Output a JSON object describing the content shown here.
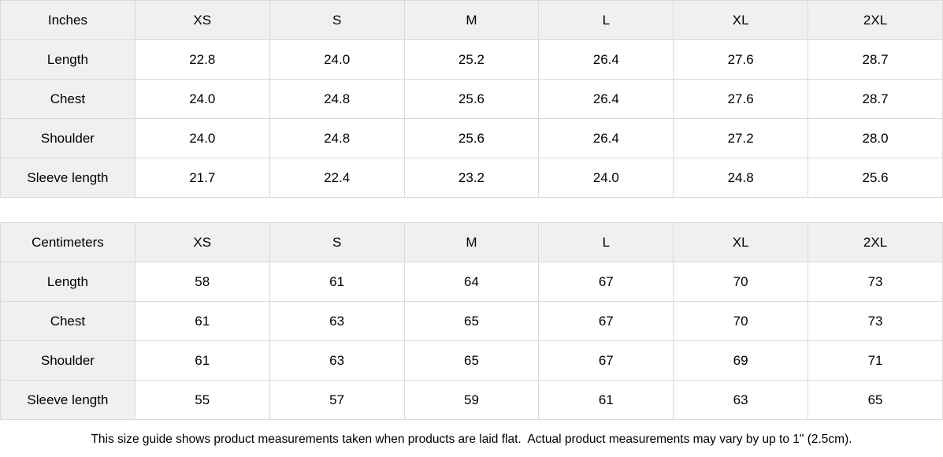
{
  "size_guide": {
    "columns": [
      "XS",
      "S",
      "M",
      "L",
      "XL",
      "2XL"
    ],
    "tables": [
      {
        "unit_label": "Inches",
        "rows": [
          {
            "label": "Length",
            "values": [
              "22.8",
              "24.0",
              "25.2",
              "26.4",
              "27.6",
              "28.7"
            ]
          },
          {
            "label": "Chest",
            "values": [
              "24.0",
              "24.8",
              "25.6",
              "26.4",
              "27.6",
              "28.7"
            ]
          },
          {
            "label": "Shoulder",
            "values": [
              "24.0",
              "24.8",
              "25.6",
              "26.4",
              "27.2",
              "28.0"
            ]
          },
          {
            "label": "Sleeve length",
            "values": [
              "21.7",
              "22.4",
              "23.2",
              "24.0",
              "24.8",
              "25.6"
            ]
          }
        ]
      },
      {
        "unit_label": "Centimeters",
        "rows": [
          {
            "label": "Length",
            "values": [
              "58",
              "61",
              "64",
              "67",
              "70",
              "73"
            ]
          },
          {
            "label": "Chest",
            "values": [
              "61",
              "63",
              "65",
              "67",
              "70",
              "73"
            ]
          },
          {
            "label": "Shoulder",
            "values": [
              "61",
              "63",
              "65",
              "67",
              "69",
              "71"
            ]
          },
          {
            "label": "Sleeve length",
            "values": [
              "55",
              "57",
              "59",
              "61",
              "63",
              "65"
            ]
          }
        ]
      }
    ],
    "footnote": "This size guide shows product measurements taken when products are laid flat.  Actual product measurements may vary by up to 1\" (2.5cm).",
    "colors": {
      "header_bg": "#f0f0f0",
      "border": "#d9d9d9",
      "text": "#000000"
    }
  }
}
